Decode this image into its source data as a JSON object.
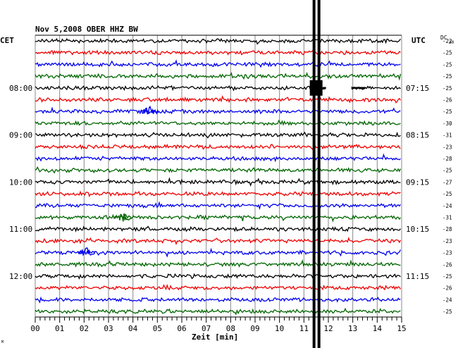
{
  "chart_data": {
    "type": "line",
    "title": "Nov 5,2008   OBER HHZ BW",
    "xlabel": "Zeit [min]",
    "ylabel": "",
    "left_axis_title": "CET",
    "right_axis_title": "UTC",
    "dc_label": "DC",
    "dc_first": "20",
    "xlim": [
      0,
      15
    ],
    "x_ticks": [
      "00",
      "01",
      "02",
      "03",
      "04",
      "05",
      "06",
      "07",
      "08",
      "09",
      "10",
      "11",
      "12",
      "13",
      "14",
      "15"
    ],
    "trace_count": 24,
    "trace_colors": [
      "#000000",
      "#ee0000",
      "#0000ee",
      "#006600"
    ],
    "left_hour_labels": [
      {
        "trace": 4,
        "label": "08:00"
      },
      {
        "trace": 8,
        "label": "09:00"
      },
      {
        "trace": 12,
        "label": "10:00"
      },
      {
        "trace": 16,
        "label": "11:00"
      },
      {
        "trace": 20,
        "label": "12:00"
      }
    ],
    "right_hour_labels": [
      {
        "trace": 4,
        "label": "07:15"
      },
      {
        "trace": 8,
        "label": "08:15"
      },
      {
        "trace": 12,
        "label": "09:15"
      },
      {
        "trace": 16,
        "label": "10:15"
      },
      {
        "trace": 20,
        "label": "11:15"
      }
    ],
    "dc_offsets": [
      "-22",
      "-25",
      "-25",
      "-25",
      "-25",
      "-26",
      "-25",
      "-30",
      "-31",
      "-23",
      "-28",
      "-25",
      "-27",
      "-25",
      "-24",
      "-31",
      "-28",
      "-23",
      "-23",
      "-26",
      "-25",
      "-26",
      "-24",
      "-25"
    ],
    "events": [
      {
        "trace": 4,
        "x_min": 11.5,
        "kind": "large-saturated"
      },
      {
        "trace": 6,
        "x_min": 4.7,
        "kind": "small"
      },
      {
        "trace": 18,
        "x_min": 2.1,
        "kind": "small"
      },
      {
        "trace": 15,
        "x_min": 3.6,
        "kind": "small"
      }
    ],
    "grid": true,
    "corner_mark": "M"
  }
}
